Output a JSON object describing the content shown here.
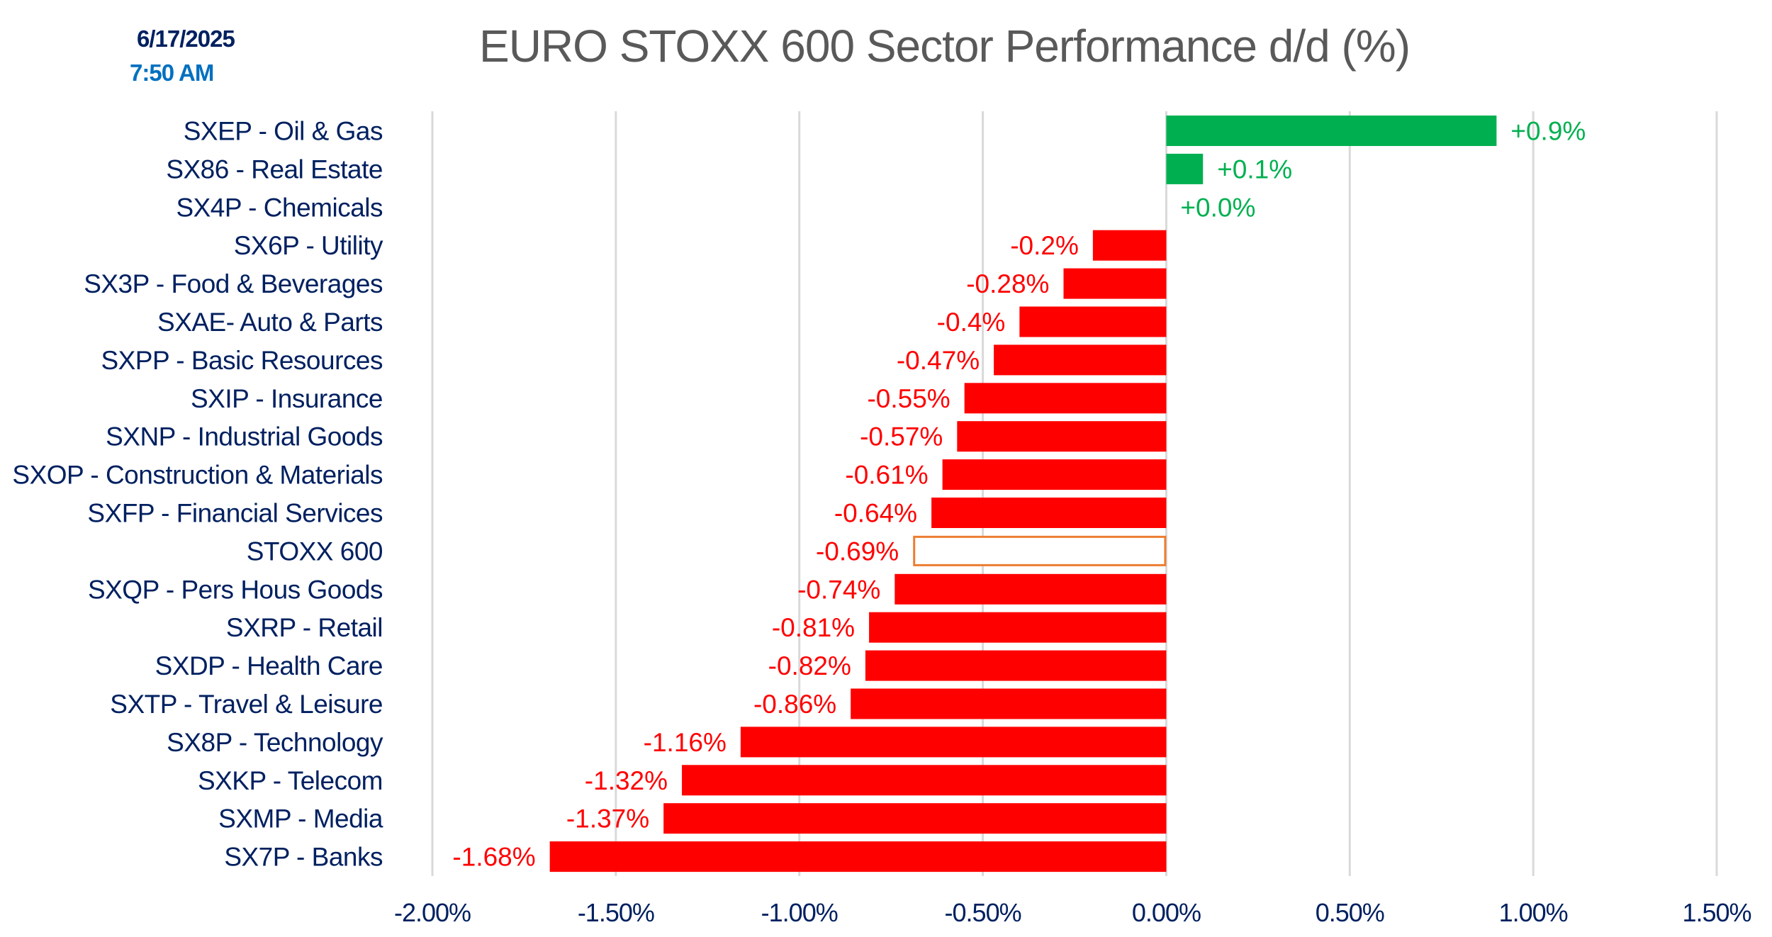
{
  "header": {
    "date": "6/17/2025",
    "time": "7:50 AM"
  },
  "colors": {
    "positive": "#00B050",
    "negative": "#FF0000",
    "index_outline": "#ED7D31",
    "category_label": "#002060",
    "tick_label": "#002060",
    "title": "#595959",
    "gridline": "#D9D9D9",
    "time": "#0070C0"
  },
  "chart_data": {
    "type": "bar",
    "orientation": "horizontal",
    "title": "EURO STOXX  600 Sector Performance d/d (%)",
    "xlabel": "",
    "ylabel": "",
    "xlim": [
      -2.0,
      1.5
    ],
    "grid": true,
    "legend": "none",
    "x_ticks": [
      -2.0,
      -1.5,
      -1.0,
      -0.5,
      0.0,
      0.5,
      1.0,
      1.5
    ],
    "x_tick_labels": [
      "-2.00%",
      "-1.50%",
      "-1.00%",
      "-0.50%",
      "0.00%",
      "0.50%",
      "1.00%",
      "1.50%"
    ],
    "categories": [
      "SXEP - Oil & Gas",
      "SX86 - Real Estate",
      "SX4P - Chemicals",
      "SX6P - Utility",
      "SX3P - Food & Beverages",
      "SXAE- Auto & Parts",
      "SXPP - Basic Resources",
      "SXIP - Insurance",
      "SXNP - Industrial Goods",
      "SXOP - Construction & Materials",
      "SXFP - Financial Services",
      "STOXX 600",
      "SXQP - Pers Hous Goods",
      "SXRP - Retail",
      "SXDP - Health Care",
      "SXTP - Travel & Leisure",
      "SX8P - Technology",
      "SXKP - Telecom",
      "SXMP - Media",
      "SX7P - Banks"
    ],
    "values": [
      0.9,
      0.1,
      0.0,
      -0.2,
      -0.28,
      -0.4,
      -0.47,
      -0.55,
      -0.57,
      -0.61,
      -0.64,
      -0.69,
      -0.74,
      -0.81,
      -0.82,
      -0.86,
      -1.16,
      -1.32,
      -1.37,
      -1.68
    ],
    "data_labels": [
      "+0.9%",
      "+0.1%",
      "+0.0%",
      "-0.2%",
      "-0.28%",
      "-0.4%",
      "-0.47%",
      "-0.55%",
      "-0.57%",
      "-0.61%",
      "-0.64%",
      "-0.69%",
      "-0.74%",
      "-0.81%",
      "-0.82%",
      "-0.86%",
      "-1.16%",
      "-1.32%",
      "-1.37%",
      "-1.68%"
    ],
    "highlight_index_category": "STOXX 600"
  }
}
